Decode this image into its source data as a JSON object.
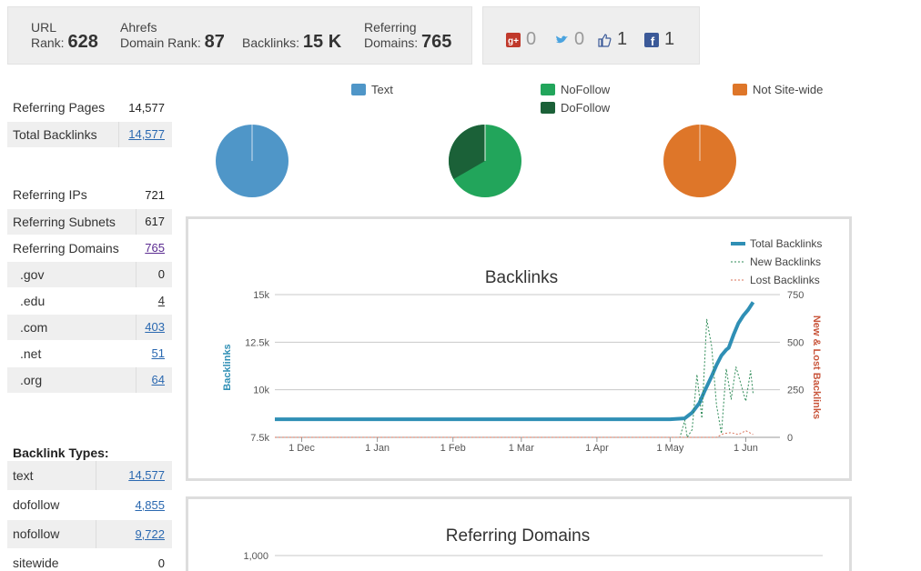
{
  "stats": {
    "url_rank_label1": "URL",
    "url_rank_label2": "Rank:",
    "url_rank_value": "628",
    "ahrefs_label1": "Ahrefs",
    "ahrefs_label2": "Domain Rank:",
    "ahrefs_value": "87",
    "backlinks_label": "Backlinks:",
    "backlinks_value": "15 K",
    "refdom_label1": "Referring",
    "refdom_label2": "Domains:",
    "refdom_value": "765"
  },
  "social": {
    "google": {
      "icon": "google-plus-icon",
      "count": "0"
    },
    "twitter": {
      "icon": "twitter-icon",
      "count": "0"
    },
    "like": {
      "icon": "thumbs-up-icon",
      "count": "1"
    },
    "facebook": {
      "icon": "facebook-icon",
      "count": "1"
    }
  },
  "summary1": [
    {
      "label": "Referring Pages",
      "value": "14,577"
    },
    {
      "label": "Total Backlinks",
      "value": "14,577"
    }
  ],
  "summary2": [
    {
      "label": "Referring IPs",
      "value": "721"
    },
    {
      "label": "Referring Subnets",
      "value": "617"
    },
    {
      "label": "Referring Domains",
      "value": "765"
    },
    {
      "label": ".gov",
      "value": "0"
    },
    {
      "label": ".edu",
      "value": "4"
    },
    {
      "label": ".com",
      "value": "403"
    },
    {
      "label": ".net",
      "value": "51"
    },
    {
      "label": ".org",
      "value": "64"
    }
  ],
  "backlink_types": {
    "title": "Backlink Types:",
    "rows": [
      {
        "label": "text",
        "value": "14,577"
      },
      {
        "label": "dofollow",
        "value": "4,855"
      },
      {
        "label": "nofollow",
        "value": "9,722"
      },
      {
        "label": "sitewide",
        "value": "0"
      }
    ]
  },
  "pies": {
    "legend": {
      "text": "Text",
      "nofollow": "NoFollow",
      "dofollow": "DoFollow",
      "notsitewide": "Not Site-wide"
    },
    "colors": {
      "text": "#4f96c8",
      "nofollow": "#22a55b",
      "dofollow": "#1b6138",
      "notsitewide": "#de7629"
    }
  },
  "chart_data": [
    {
      "type": "line",
      "title": "Backlinks",
      "ylabel": "Backlinks",
      "y2label": "New & Lost Backlinks",
      "ylim": [
        7500,
        15000
      ],
      "y2lim": [
        0,
        750
      ],
      "y_ticks": [
        "7.5k",
        "10k",
        "12.5k",
        "15k"
      ],
      "y2_ticks": [
        "0",
        "250",
        "500",
        "750"
      ],
      "x_ticks": [
        "1 Dec",
        "1 Jan",
        "1 Feb",
        "1 Mar",
        "1 Apr",
        "1 May",
        "1 Jun"
      ],
      "legend_position": "top-right",
      "series": [
        {
          "name": "Total Backlinks",
          "color": "#2f8fb5",
          "axis": "left",
          "points": [
            [
              "2012-11-20",
              8450
            ],
            [
              "2013-05-01",
              8450
            ],
            [
              "2013-05-07",
              8500
            ],
            [
              "2013-05-10",
              8800
            ],
            [
              "2013-05-13",
              9300
            ],
            [
              "2013-05-15",
              9900
            ],
            [
              "2013-05-18",
              10700
            ],
            [
              "2013-05-20",
              11300
            ],
            [
              "2013-05-22",
              11800
            ],
            [
              "2013-05-24",
              12100
            ],
            [
              "2013-05-25",
              12200
            ],
            [
              "2013-05-27",
              12900
            ],
            [
              "2013-05-29",
              13500
            ],
            [
              "2013-05-31",
              13900
            ],
            [
              "2013-06-02",
              14200
            ],
            [
              "2013-06-04",
              14600
            ]
          ]
        },
        {
          "name": "New Backlinks",
          "color": "#2e8b57",
          "axis": "right",
          "points": [
            [
              "2012-11-20",
              0
            ],
            [
              "2013-05-05",
              0
            ],
            [
              "2013-05-07",
              90
            ],
            [
              "2013-05-08",
              0
            ],
            [
              "2013-05-10",
              40
            ],
            [
              "2013-05-12",
              330
            ],
            [
              "2013-05-14",
              100
            ],
            [
              "2013-05-16",
              620
            ],
            [
              "2013-05-18",
              480
            ],
            [
              "2013-05-20",
              170
            ],
            [
              "2013-05-22",
              20
            ],
            [
              "2013-05-24",
              360
            ],
            [
              "2013-05-26",
              200
            ],
            [
              "2013-05-28",
              370
            ],
            [
              "2013-05-30",
              280
            ],
            [
              "2013-06-01",
              190
            ],
            [
              "2013-06-03",
              350
            ],
            [
              "2013-06-04",
              230
            ]
          ]
        },
        {
          "name": "Lost Backlinks",
          "color": "#d9735a",
          "axis": "right",
          "points": [
            [
              "2012-11-20",
              0
            ],
            [
              "2013-05-20",
              0
            ],
            [
              "2013-05-23",
              20
            ],
            [
              "2013-05-26",
              25
            ],
            [
              "2013-05-29",
              15
            ],
            [
              "2013-06-01",
              35
            ],
            [
              "2013-06-04",
              15
            ]
          ]
        }
      ]
    },
    {
      "type": "line",
      "title": "Referring Domains",
      "y_ticks": [
        "1,000"
      ],
      "series": []
    }
  ]
}
